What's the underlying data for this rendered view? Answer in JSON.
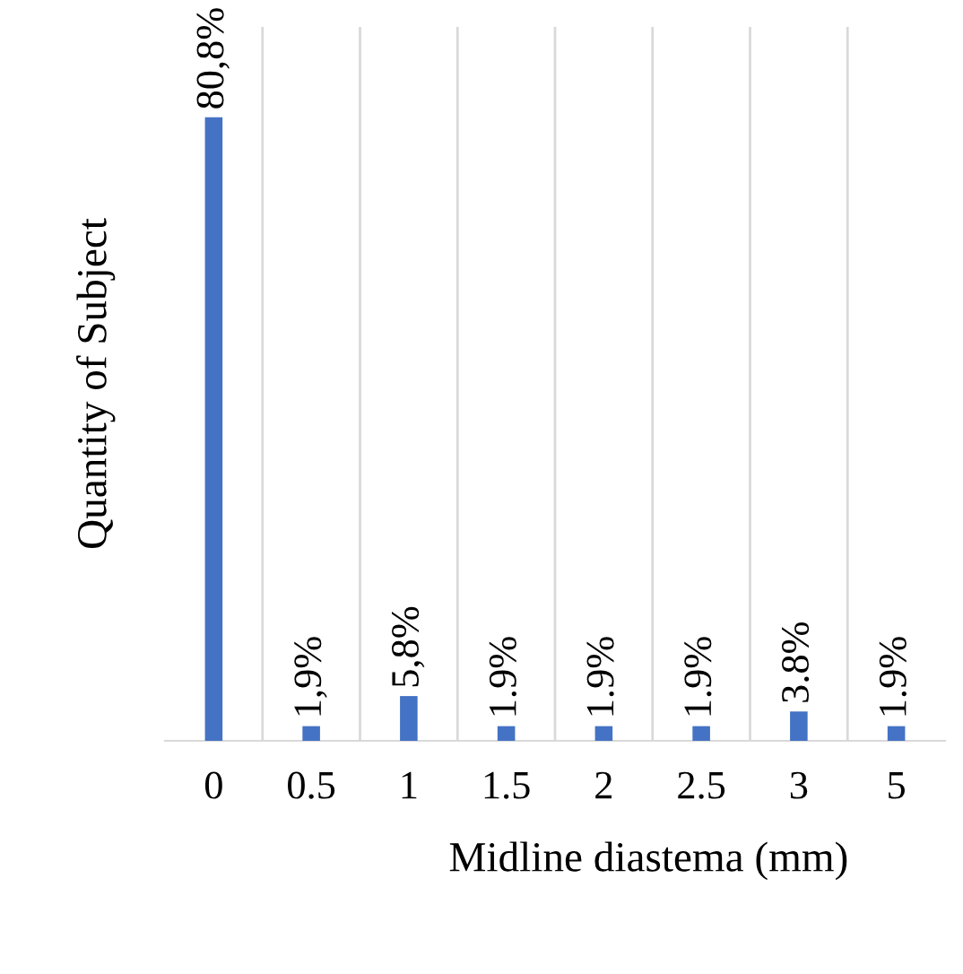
{
  "chart_data": {
    "type": "bar",
    "xlabel": "Midline diastema (mm)",
    "ylabel": "Quantity of Subject",
    "categories": [
      "0",
      "0.5",
      "1",
      "1.5",
      "2",
      "2.5",
      "3",
      "5"
    ],
    "values": [
      80.8,
      1.9,
      5.8,
      1.9,
      1.9,
      1.9,
      3.8,
      1.9
    ],
    "value_labels": [
      "80,8%",
      "1,9%",
      "5,8%",
      "1.9%",
      "1.9%",
      "1.9%",
      "3.8%",
      "1.9%"
    ],
    "color": "#4472c4",
    "grid": "x",
    "legend": false
  }
}
